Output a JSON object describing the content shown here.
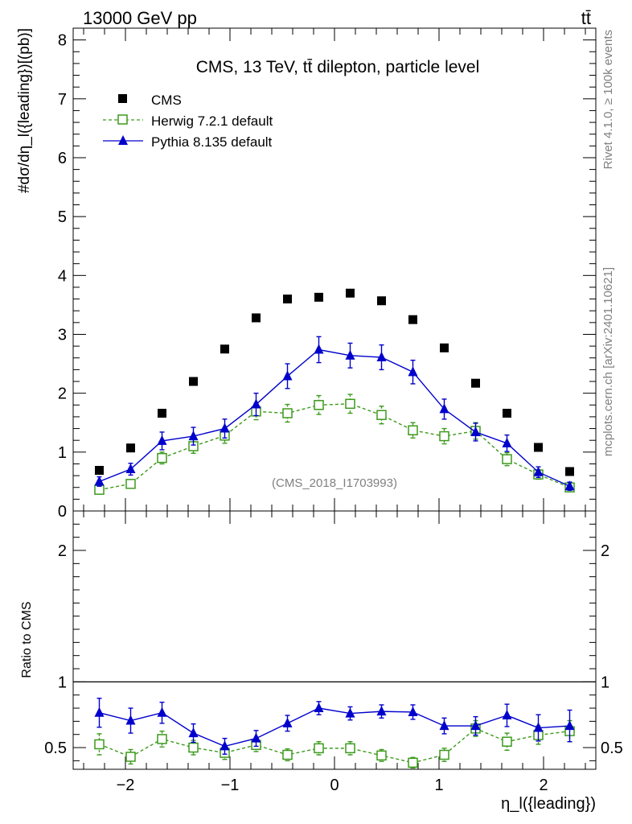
{
  "header": {
    "energy_label": "13000 GeV pp",
    "process_label": "tt̄"
  },
  "side_labels": {
    "rivet": "Rivet 4.1.0, ≥ 100k events",
    "mcplots": "mcplots.cern.ch [arXiv:2401.10621]"
  },
  "colors": {
    "cms": "#000000",
    "herwig": "#3c9a1c",
    "pythia": "#0000cc",
    "watermark": "#808080"
  },
  "chart_data": [
    {
      "type": "scatter",
      "title": "CMS, 13 TeV, tt̄ dilepton, particle level",
      "analysis_label": "(CMS_2018_I1703993)",
      "ylabel": "#dσ/dη_l({leading})[(pb)]",
      "ylim": [
        0,
        8.2
      ],
      "yticks": [
        0,
        1,
        2,
        3,
        4,
        5,
        6,
        7,
        8
      ],
      "xlim": [
        -2.5,
        2.5
      ],
      "legend_position": "top-left",
      "x": [
        -2.25,
        -1.95,
        -1.65,
        -1.35,
        -1.05,
        -0.75,
        -0.45,
        -0.15,
        0.15,
        0.45,
        0.75,
        1.05,
        1.35,
        1.65,
        1.95,
        2.25
      ],
      "series": [
        {
          "name": "CMS",
          "marker": "filled-square",
          "values": [
            0.69,
            1.07,
            1.66,
            2.2,
            2.75,
            3.28,
            3.6,
            3.63,
            3.7,
            3.57,
            3.25,
            2.77,
            2.17,
            1.66,
            1.08,
            0.67
          ],
          "errors": [
            0,
            0,
            0,
            0,
            0,
            0,
            0,
            0,
            0,
            0,
            0,
            0,
            0,
            0,
            0,
            0
          ]
        },
        {
          "name": "Herwig 7.2.1 default",
          "marker": "open-square",
          "line": "dashed",
          "values": [
            0.36,
            0.46,
            0.9,
            1.1,
            1.28,
            1.69,
            1.66,
            1.8,
            1.82,
            1.63,
            1.37,
            1.27,
            1.36,
            0.88,
            0.62,
            0.4
          ],
          "errors": [
            0.05,
            0.06,
            0.1,
            0.12,
            0.13,
            0.14,
            0.15,
            0.16,
            0.16,
            0.15,
            0.13,
            0.13,
            0.14,
            0.11,
            0.08,
            0.06
          ]
        },
        {
          "name": "Pythia 8.135 default",
          "marker": "filled-triangle",
          "line": "solid",
          "values": [
            0.5,
            0.71,
            1.19,
            1.27,
            1.4,
            1.81,
            2.29,
            2.74,
            2.64,
            2.61,
            2.36,
            1.73,
            1.34,
            1.15,
            0.66,
            0.42
          ],
          "errors": [
            0.08,
            0.1,
            0.15,
            0.15,
            0.16,
            0.19,
            0.21,
            0.22,
            0.21,
            0.21,
            0.2,
            0.17,
            0.15,
            0.14,
            0.09,
            0.07
          ]
        }
      ]
    },
    {
      "type": "scatter",
      "ylabel": "Ratio to CMS",
      "xlabel": "η_l({leading})",
      "ylim": [
        0.335,
        2.3
      ],
      "yticks": [
        0.5,
        1,
        2
      ],
      "ytick_labels": [
        "0.5",
        "1",
        "2"
      ],
      "xlim": [
        -2.5,
        2.5
      ],
      "xticks": [
        -2,
        -1,
        0,
        1,
        2
      ],
      "xtick_labels": [
        "−2",
        "−1",
        "0",
        "1",
        "2"
      ],
      "reference_line": 1,
      "x": [
        -2.25,
        -1.95,
        -1.65,
        -1.35,
        -1.05,
        -0.75,
        -0.45,
        -0.15,
        0.15,
        0.45,
        0.75,
        1.05,
        1.35,
        1.65,
        1.95,
        2.25
      ],
      "series": [
        {
          "name": "Herwig 7.2.1 default",
          "marker": "open-square",
          "line": "dashed",
          "values": [
            0.525,
            0.43,
            0.565,
            0.5,
            0.46,
            0.52,
            0.445,
            0.495,
            0.495,
            0.44,
            0.385,
            0.445,
            0.645,
            0.545,
            0.595,
            0.625
          ],
          "errors": [
            0.08,
            0.055,
            0.06,
            0.055,
            0.05,
            0.05,
            0.045,
            0.05,
            0.05,
            0.045,
            0.04,
            0.05,
            0.06,
            0.065,
            0.07,
            0.08
          ]
        },
        {
          "name": "Pythia 8.135 default",
          "marker": "filled-triangle",
          "line": "solid",
          "values": [
            0.765,
            0.705,
            0.765,
            0.61,
            0.51,
            0.57,
            0.685,
            0.8,
            0.76,
            0.775,
            0.77,
            0.665,
            0.665,
            0.745,
            0.65,
            0.665
          ],
          "errors": [
            0.11,
            0.095,
            0.08,
            0.07,
            0.06,
            0.06,
            0.06,
            0.05,
            0.05,
            0.05,
            0.055,
            0.06,
            0.07,
            0.085,
            0.1,
            0.12
          ]
        }
      ]
    }
  ]
}
